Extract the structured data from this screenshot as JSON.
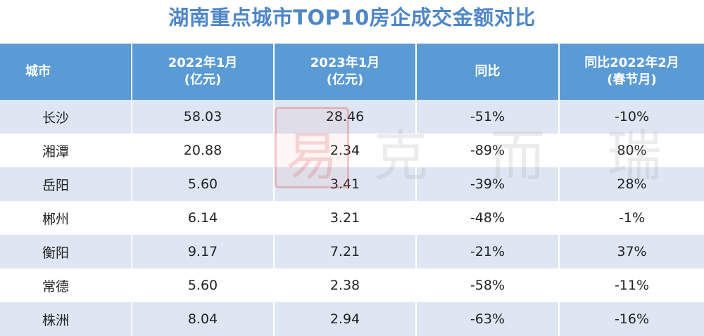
{
  "title": "湖南重点城市TOP10房企成交金额对比",
  "headers": {
    "city": "城市",
    "jan2022_line1": "2022年1月",
    "jan2022_line2": "(亿元)",
    "jan2023_line1": "2023年1月",
    "jan2023_line2": "(亿元)",
    "yoy": "同比",
    "vs_feb2022_line1": "同比2022年2月",
    "vs_feb2022_line2": "(春节月)"
  },
  "watermark": {
    "seal_char": "易",
    "text": "克而瑞"
  },
  "chart_data": {
    "type": "table",
    "title": "湖南重点城市TOP10房企成交金额对比",
    "columns": [
      "城市",
      "2022年1月(亿元)",
      "2023年1月(亿元)",
      "同比",
      "同比2022年2月(春节月)"
    ],
    "rows": [
      {
        "city": "长沙",
        "jan2022": "58.03",
        "jan2023": "28.46",
        "yoy": "-51%",
        "vs_feb2022": "-10%"
      },
      {
        "city": "湘潭",
        "jan2022": "20.88",
        "jan2023": "2.34",
        "yoy": "-89%",
        "vs_feb2022": "80%"
      },
      {
        "city": "岳阳",
        "jan2022": "5.60",
        "jan2023": "3.41",
        "yoy": "-39%",
        "vs_feb2022": "28%"
      },
      {
        "city": "郴州",
        "jan2022": "6.14",
        "jan2023": "3.21",
        "yoy": "-48%",
        "vs_feb2022": "-1%"
      },
      {
        "city": "衡阳",
        "jan2022": "9.17",
        "jan2023": "7.21",
        "yoy": "-21%",
        "vs_feb2022": "37%"
      },
      {
        "city": "常德",
        "jan2022": "5.60",
        "jan2023": "2.38",
        "yoy": "-58%",
        "vs_feb2022": "-11%"
      },
      {
        "city": "株洲",
        "jan2022": "8.04",
        "jan2023": "2.94",
        "yoy": "-63%",
        "vs_feb2022": "-16%"
      }
    ]
  },
  "colors": {
    "title": "#4f86c6",
    "header_bg": "#5b9bd5",
    "row_odd": "#dde6f2",
    "row_even": "#ffffff"
  }
}
